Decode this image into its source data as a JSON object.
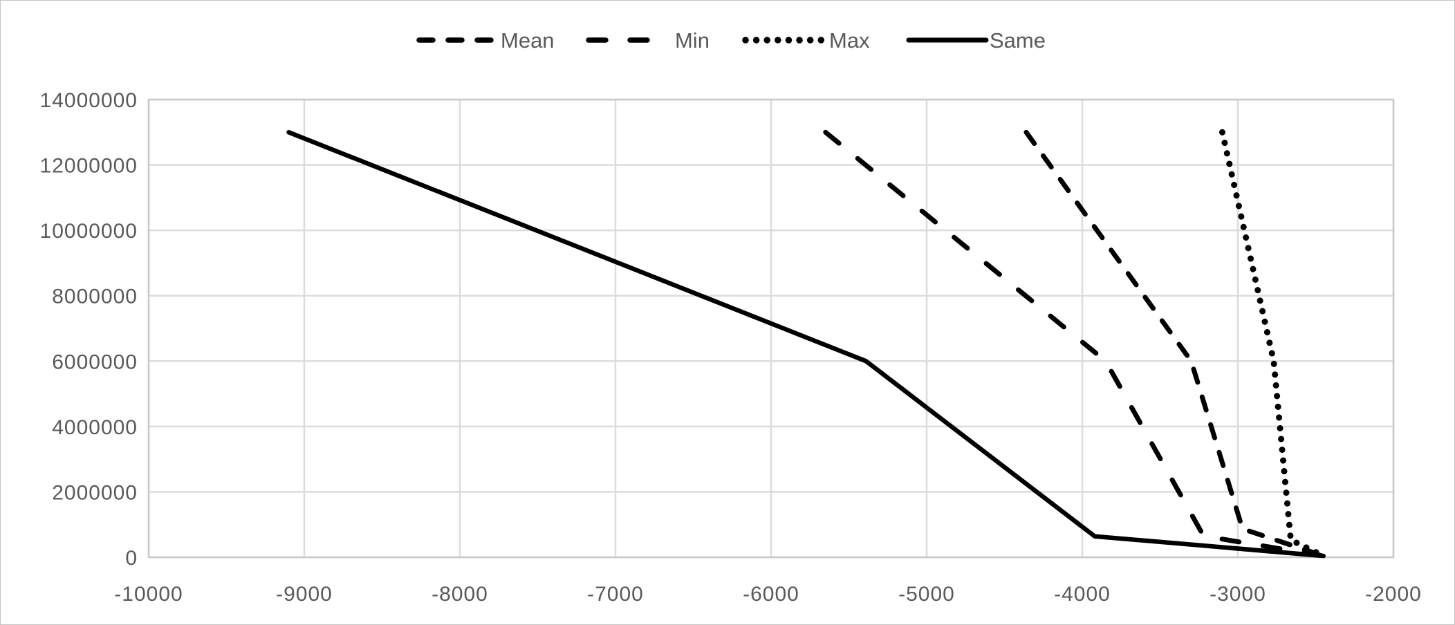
{
  "chart_data": {
    "type": "line",
    "title": "",
    "xlabel": "",
    "ylabel": "",
    "xlim": [
      -10000,
      -2000
    ],
    "ylim": [
      0,
      14000000
    ],
    "x_ticks": [
      -10000,
      -9000,
      -8000,
      -7000,
      -6000,
      -5000,
      -4000,
      -3000,
      -2000
    ],
    "y_ticks": [
      0,
      2000000,
      4000000,
      6000000,
      8000000,
      10000000,
      12000000,
      14000000
    ],
    "grid": true,
    "legend_position": "top-center",
    "series": [
      {
        "name": "Mean",
        "line_style": "dash",
        "points": [
          [
            -4360,
            13000000
          ],
          [
            -3300,
            6000000
          ],
          [
            -2970,
            870000
          ],
          [
            -2450,
            40000
          ]
        ]
      },
      {
        "name": "Min",
        "line_style": "long-dash",
        "points": [
          [
            -5650,
            13000000
          ],
          [
            -3850,
            6000000
          ],
          [
            -3220,
            650000
          ],
          [
            -2450,
            40000
          ]
        ]
      },
      {
        "name": "Max",
        "line_style": "dot",
        "points": [
          [
            -3100,
            13000000
          ],
          [
            -2770,
            6000000
          ],
          [
            -2660,
            530000
          ],
          [
            -2450,
            40000
          ]
        ]
      },
      {
        "name": "Same",
        "line_style": "solid",
        "points": [
          [
            -9100,
            13000000
          ],
          [
            -5390,
            6000000
          ],
          [
            -3920,
            640000
          ],
          [
            -2450,
            40000
          ]
        ]
      }
    ],
    "colors": {
      "line": "#000000",
      "grid": "#dcdcdc",
      "plot_border": "#c9c9c9",
      "axis_text": "#595959",
      "background": "#ffffff"
    }
  }
}
